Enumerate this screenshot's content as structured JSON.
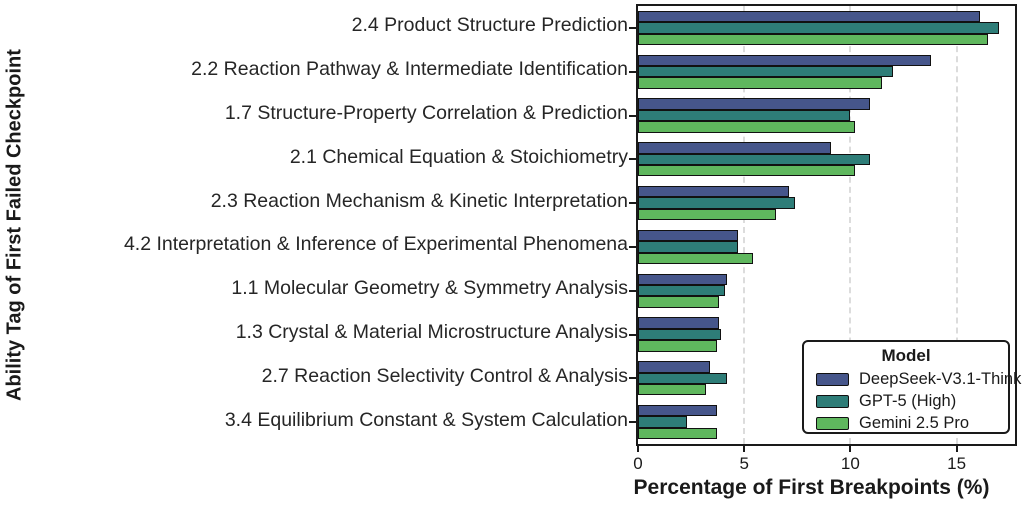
{
  "chart_data": {
    "type": "bar",
    "orientation": "horizontal",
    "title": "",
    "xlabel": "Percentage of First Breakpoints (%)",
    "ylabel": "Ability Tag of First Failed Checkpoint",
    "categories": [
      "2.4 Product Structure Prediction",
      "2.2 Reaction Pathway & Intermediate Identification",
      "1.7 Structure-Property Correlation & Prediction",
      "2.1 Chemical Equation & Stoichiometry",
      "2.3 Reaction Mechanism & Kinetic Interpretation",
      "4.2 Interpretation & Inference of Experimental Phenomena",
      "1.1 Molecular Geometry & Symmetry Analysis",
      "1.3 Crystal & Material Microstructure Analysis",
      "2.7 Reaction Selectivity Control & Analysis",
      "3.4 Equilibrium Constant & System Calculation"
    ],
    "series": [
      {
        "name": "DeepSeek-V3.1-Think",
        "color": "#46568b",
        "values": [
          16.1,
          13.8,
          10.9,
          9.1,
          7.1,
          4.7,
          4.2,
          3.8,
          3.4,
          3.7
        ]
      },
      {
        "name": "GPT-5 (High)",
        "color": "#2e7d78",
        "values": [
          17.0,
          12.0,
          10.0,
          10.9,
          7.4,
          4.7,
          4.1,
          3.9,
          4.2,
          2.3
        ]
      },
      {
        "name": "Gemini 2.5 Pro",
        "color": "#5fb75e",
        "values": [
          16.5,
          11.5,
          10.2,
          10.2,
          6.5,
          5.4,
          3.8,
          3.7,
          3.2,
          3.7
        ]
      }
    ],
    "x_ticks": [
      0,
      5,
      10,
      15
    ],
    "xlim": [
      0,
      17.75
    ],
    "grid": "vertical dashed gridlines at x ticks",
    "legend_position": "lower right",
    "bar_edge_color": "#111111"
  },
  "legend": {
    "title": "Model"
  }
}
